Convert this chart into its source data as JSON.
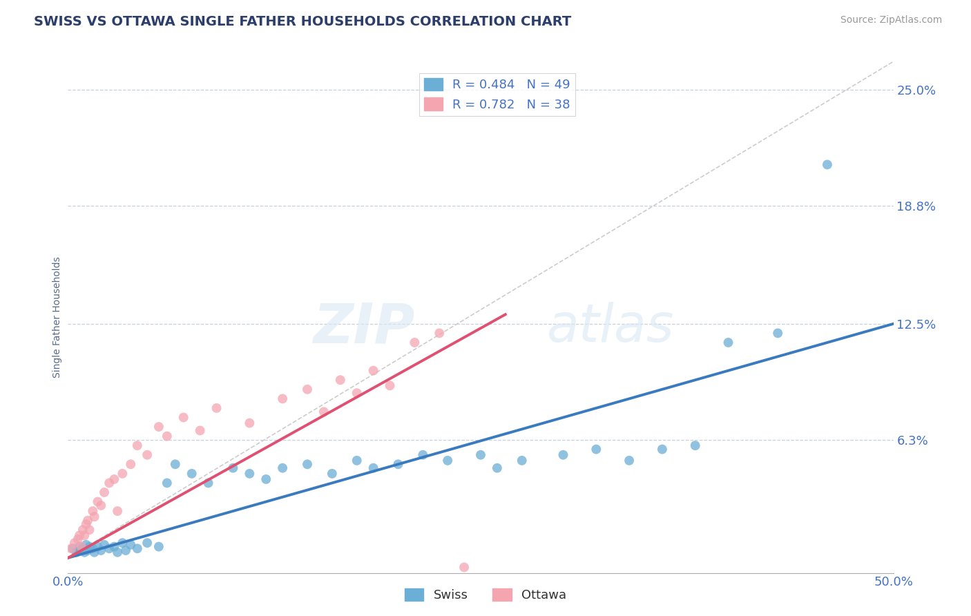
{
  "title": "SWISS VS OTTAWA SINGLE FATHER HOUSEHOLDS CORRELATION CHART",
  "source": "Source: ZipAtlas.com",
  "ylabel": "Single Father Households",
  "xlim": [
    0.0,
    0.5
  ],
  "ylim": [
    -0.008,
    0.265
  ],
  "xtick_labels": [
    "0.0%",
    "50.0%"
  ],
  "ytick_labels": [
    "6.3%",
    "12.5%",
    "18.8%",
    "25.0%"
  ],
  "ytick_values": [
    0.063,
    0.125,
    0.188,
    0.25
  ],
  "legend1_text": "R = 0.484   N = 49",
  "legend2_text": "R = 0.782   N = 38",
  "swiss_color": "#6baed6",
  "ottawa_color": "#f4a5b0",
  "title_color": "#2c3e6b",
  "axis_label_color": "#5a6a8a",
  "tick_color": "#4472c4",
  "swiss_line_color": "#3a7abf",
  "ottawa_line_color": "#e05070",
  "swiss_points_x": [
    0.003,
    0.005,
    0.007,
    0.008,
    0.009,
    0.01,
    0.011,
    0.012,
    0.013,
    0.015,
    0.016,
    0.018,
    0.02,
    0.022,
    0.025,
    0.028,
    0.03,
    0.033,
    0.035,
    0.038,
    0.042,
    0.048,
    0.055,
    0.06,
    0.065,
    0.075,
    0.085,
    0.1,
    0.11,
    0.12,
    0.13,
    0.145,
    0.16,
    0.175,
    0.185,
    0.2,
    0.215,
    0.23,
    0.25,
    0.26,
    0.275,
    0.3,
    0.32,
    0.34,
    0.36,
    0.38,
    0.4,
    0.43,
    0.46
  ],
  "swiss_points_y": [
    0.005,
    0.003,
    0.006,
    0.004,
    0.005,
    0.003,
    0.007,
    0.004,
    0.006,
    0.005,
    0.003,
    0.006,
    0.004,
    0.007,
    0.005,
    0.006,
    0.003,
    0.008,
    0.004,
    0.007,
    0.005,
    0.008,
    0.006,
    0.04,
    0.05,
    0.045,
    0.04,
    0.048,
    0.045,
    0.042,
    0.048,
    0.05,
    0.045,
    0.052,
    0.048,
    0.05,
    0.055,
    0.052,
    0.055,
    0.048,
    0.052,
    0.055,
    0.058,
    0.052,
    0.058,
    0.06,
    0.115,
    0.12,
    0.21
  ],
  "ottawa_points_x": [
    0.002,
    0.004,
    0.006,
    0.007,
    0.008,
    0.009,
    0.01,
    0.011,
    0.012,
    0.013,
    0.015,
    0.016,
    0.018,
    0.02,
    0.022,
    0.025,
    0.028,
    0.03,
    0.033,
    0.038,
    0.042,
    0.048,
    0.055,
    0.06,
    0.07,
    0.08,
    0.09,
    0.11,
    0.13,
    0.145,
    0.155,
    0.165,
    0.175,
    0.185,
    0.195,
    0.21,
    0.225,
    0.24
  ],
  "ottawa_points_y": [
    0.005,
    0.008,
    0.01,
    0.012,
    0.006,
    0.015,
    0.012,
    0.018,
    0.02,
    0.015,
    0.025,
    0.022,
    0.03,
    0.028,
    0.035,
    0.04,
    0.042,
    0.025,
    0.045,
    0.05,
    0.06,
    0.055,
    0.07,
    0.065,
    0.075,
    0.068,
    0.08,
    0.072,
    0.085,
    0.09,
    0.078,
    0.095,
    0.088,
    0.1,
    0.092,
    0.115,
    0.12,
    -0.005
  ],
  "swiss_line_x": [
    0.0,
    0.5
  ],
  "swiss_line_y": [
    0.0,
    0.125
  ],
  "ottawa_line_x": [
    0.0,
    0.265
  ],
  "ottawa_line_y": [
    0.0,
    0.13
  ],
  "diag_line_x": [
    0.0,
    0.5
  ],
  "diag_line_y": [
    0.0,
    0.265
  ]
}
